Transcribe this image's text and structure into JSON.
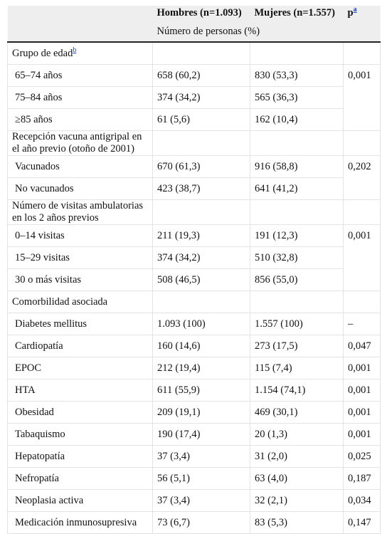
{
  "header": {
    "col_men": "Hombres (n=1.093)",
    "col_women": "Mujeres (n=1.557)",
    "col_p": "p",
    "col_p_note": "a",
    "subheader": "Número de personas (%)"
  },
  "groups": [
    {
      "title": "Grupo de edad",
      "note": "b",
      "rows": [
        {
          "label": "65–74 años",
          "men": "658 (60,2)",
          "women": "830 (53,3)"
        },
        {
          "label": "75–84 años",
          "men": "374 (34,2)",
          "women": "565 (36,3)"
        },
        {
          "label": "≥85 años",
          "men": "61 (5,6)",
          "women": "162 (10,4)"
        }
      ],
      "p": "0,001"
    },
    {
      "title": "Recepción vacuna antigripal en el año previo (otoño de 2001)",
      "rows": [
        {
          "label": "Vacunados",
          "men": "670 (61,3)",
          "women": "916 (58,8)"
        },
        {
          "label": "No vacunados",
          "men": "423 (38,7)",
          "women": "641 (41,2)"
        }
      ],
      "p": "0,202"
    },
    {
      "title": "Número de visitas ambulatorias en los 2 años previos",
      "rows": [
        {
          "label": "0–14 visitas",
          "men": "211 (19,3)",
          "women": "191 (12,3)"
        },
        {
          "label": "15–29 visitas",
          "men": "374 (34,2)",
          "women": "510 (32,8)"
        },
        {
          "label": "30 o más visitas",
          "men": "508 (46,5)",
          "women": "856 (55,0)"
        }
      ],
      "p": "0,001"
    },
    {
      "title": "Comorbilidad asociada",
      "rows": [
        {
          "label": "Diabetes mellitus",
          "men": "1.093 (100)",
          "women": "1.557 (100)",
          "p": "–"
        },
        {
          "label": "Cardiopatía",
          "men": "160 (14,6)",
          "women": "273 (17,5)",
          "p": "0,047"
        },
        {
          "label": "EPOC",
          "men": "212 (19,4)",
          "women": "115 (7,4)",
          "p": "0,001"
        },
        {
          "label": "HTA",
          "men": "611 (55,9)",
          "women": "1.154 (74,1)",
          "p": "0,001"
        },
        {
          "label": "Obesidad",
          "men": "209 (19,1)",
          "women": "469 (30,1)",
          "p": "0,001"
        },
        {
          "label": "Tabaquismo",
          "men": "190 (17,4)",
          "women": "20 (1,3)",
          "p": "0,001"
        },
        {
          "label": "Hepatopatía",
          "men": "37 (3,4)",
          "women": "31 (2,0)",
          "p": "0,025"
        },
        {
          "label": "Nefropatía",
          "men": "56 (5,1)",
          "women": "63 (4,0)",
          "p": "0,187"
        },
        {
          "label": "Neoplasia activa",
          "men": "37 (3,4)",
          "women": "32 (2,1)",
          "p": "0,034"
        },
        {
          "label": "Medicación inmunosupresiva",
          "men": "73 (6,7)",
          "women": "83 (5,3)",
          "p": "0,147"
        }
      ]
    }
  ]
}
